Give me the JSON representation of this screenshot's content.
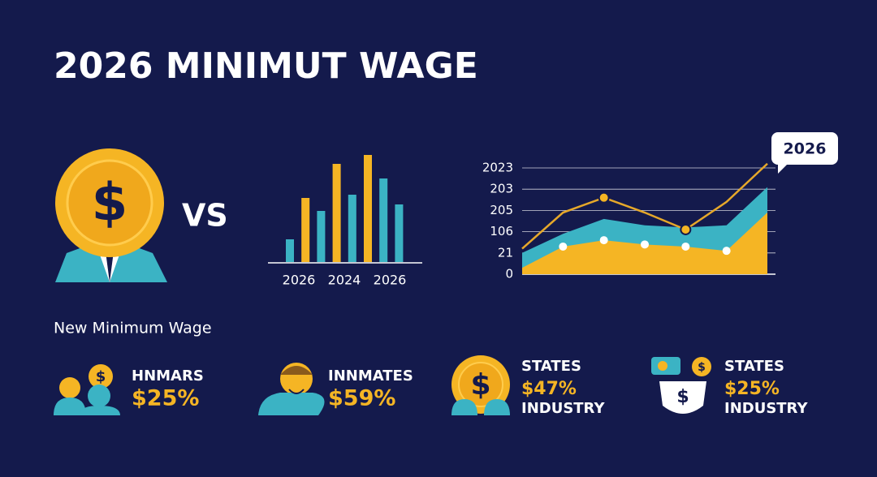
{
  "title": "2026 MINIMUT WAGE",
  "vs": "VS",
  "bar_chart": {
    "x_labels": [
      "2026",
      "2024",
      "2026"
    ],
    "bars": [
      {
        "color": "#3bb3c4",
        "value": 28
      },
      {
        "color": "#f5b524",
        "value": 79
      },
      {
        "color": "#3bb3c4",
        "value": 63
      },
      {
        "color": "#f5b524",
        "value": 121
      },
      {
        "color": "#3bb3c4",
        "value": 83
      },
      {
        "color": "#f5b524",
        "value": 132
      },
      {
        "color": "#3bb3c4",
        "value": 103
      },
      {
        "color": "#3bb3c4",
        "value": 71
      }
    ]
  },
  "area_chart": {
    "y_labels": [
      "2023",
      "203",
      "205",
      "106",
      "21",
      "0"
    ],
    "callout": "2026",
    "series": [
      {
        "color": "#3bb3c4",
        "values": [
          1.0,
          1.9,
          2.6,
          2.3,
          2.2,
          2.3,
          4.1
        ]
      },
      {
        "color": "#f5b524",
        "values": [
          0.3,
          1.3,
          1.6,
          1.4,
          1.3,
          1.1,
          2.9
        ]
      }
    ],
    "line": {
      "color": "#e6a82a",
      "values": [
        1.2,
        2.9,
        3.6,
        2.9,
        2.1,
        3.4,
        5.2
      ]
    }
  },
  "subtitle": "New Minimum Wage",
  "stats": [
    {
      "label": "HNMARS",
      "value": "$25%"
    },
    {
      "label": "INNMATES",
      "value": "$59%"
    },
    {
      "label": "STATES",
      "value": "$47%",
      "note": "INDUSTRY"
    },
    {
      "label": "STATES",
      "value": "$25%",
      "note": "INDUSTRY"
    }
  ]
}
